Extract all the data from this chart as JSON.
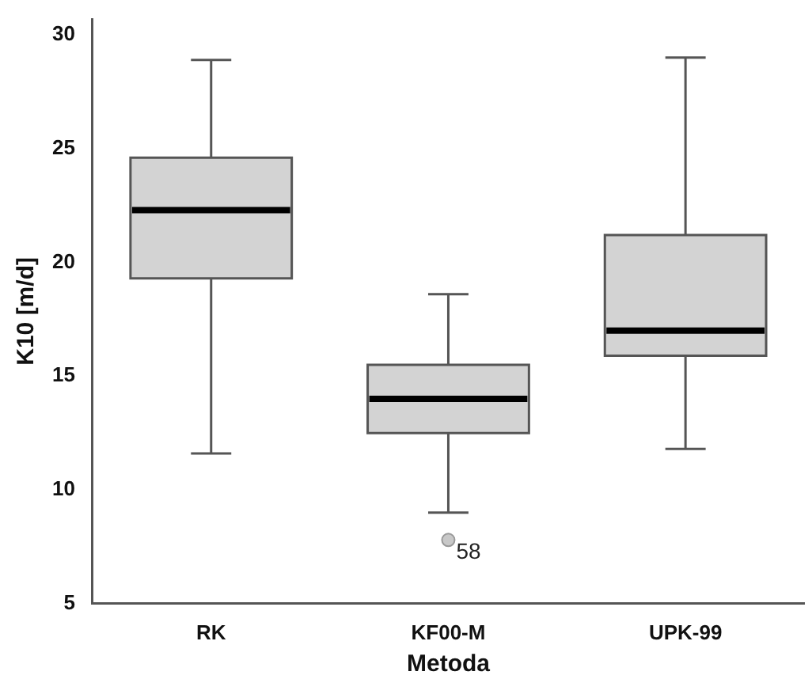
{
  "chart_data": {
    "type": "box",
    "xlabel": "Metoda",
    "ylabel": "K10 [m/d]",
    "categories": [
      "RK",
      "KF00-M",
      "UPK-99"
    ],
    "color": "#d3d3d3",
    "boxes": [
      {
        "low": 11.6,
        "q1": 19.3,
        "median": 22.3,
        "q3": 24.6,
        "high": 28.9
      },
      {
        "low": 9.0,
        "q1": 12.5,
        "median": 14.0,
        "q3": 15.5,
        "high": 18.6,
        "outliers": [
          7.8
        ]
      },
      {
        "low": 11.8,
        "q1": 15.9,
        "median": 17.0,
        "q3": 21.2,
        "high": 29.0
      }
    ],
    "ylim": [
      5,
      30.7
    ],
    "yticks": [
      5,
      10,
      15,
      20,
      25,
      30
    ],
    "annotations": [
      "58"
    ]
  }
}
